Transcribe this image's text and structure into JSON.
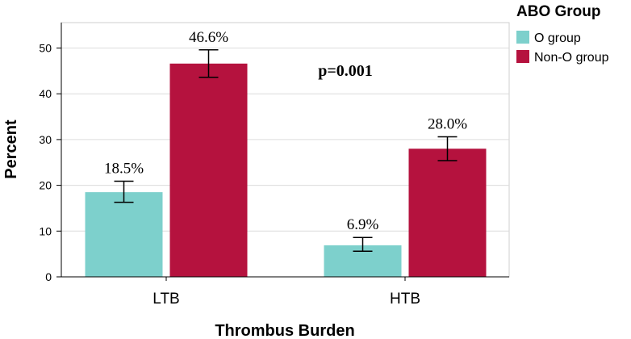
{
  "chart_data": {
    "type": "bar",
    "categories": [
      "LTB",
      "HTB"
    ],
    "series": [
      {
        "name": "O group",
        "values": [
          18.5,
          6.9
        ],
        "labels": [
          "18.5%",
          "6.9%"
        ],
        "err_low": [
          16.3,
          5.6
        ],
        "err_high": [
          20.9,
          8.6
        ],
        "color": "#7dd0cc"
      },
      {
        "name": "Non-O group",
        "values": [
          46.6,
          28.0
        ],
        "labels": [
          "46.6%",
          "28.0%"
        ],
        "err_low": [
          43.6,
          25.4
        ],
        "err_high": [
          49.6,
          30.6
        ],
        "color": "#b5123e"
      }
    ],
    "xlabel": "Thrombus Burden",
    "ylabel": "Percent",
    "ylim": [
      0,
      55
    ],
    "yticks": [
      0,
      10,
      20,
      30,
      40,
      50
    ],
    "grid": true,
    "legend": {
      "title": "ABO Group",
      "position": "top-right"
    },
    "annotation": "p=0.001"
  }
}
